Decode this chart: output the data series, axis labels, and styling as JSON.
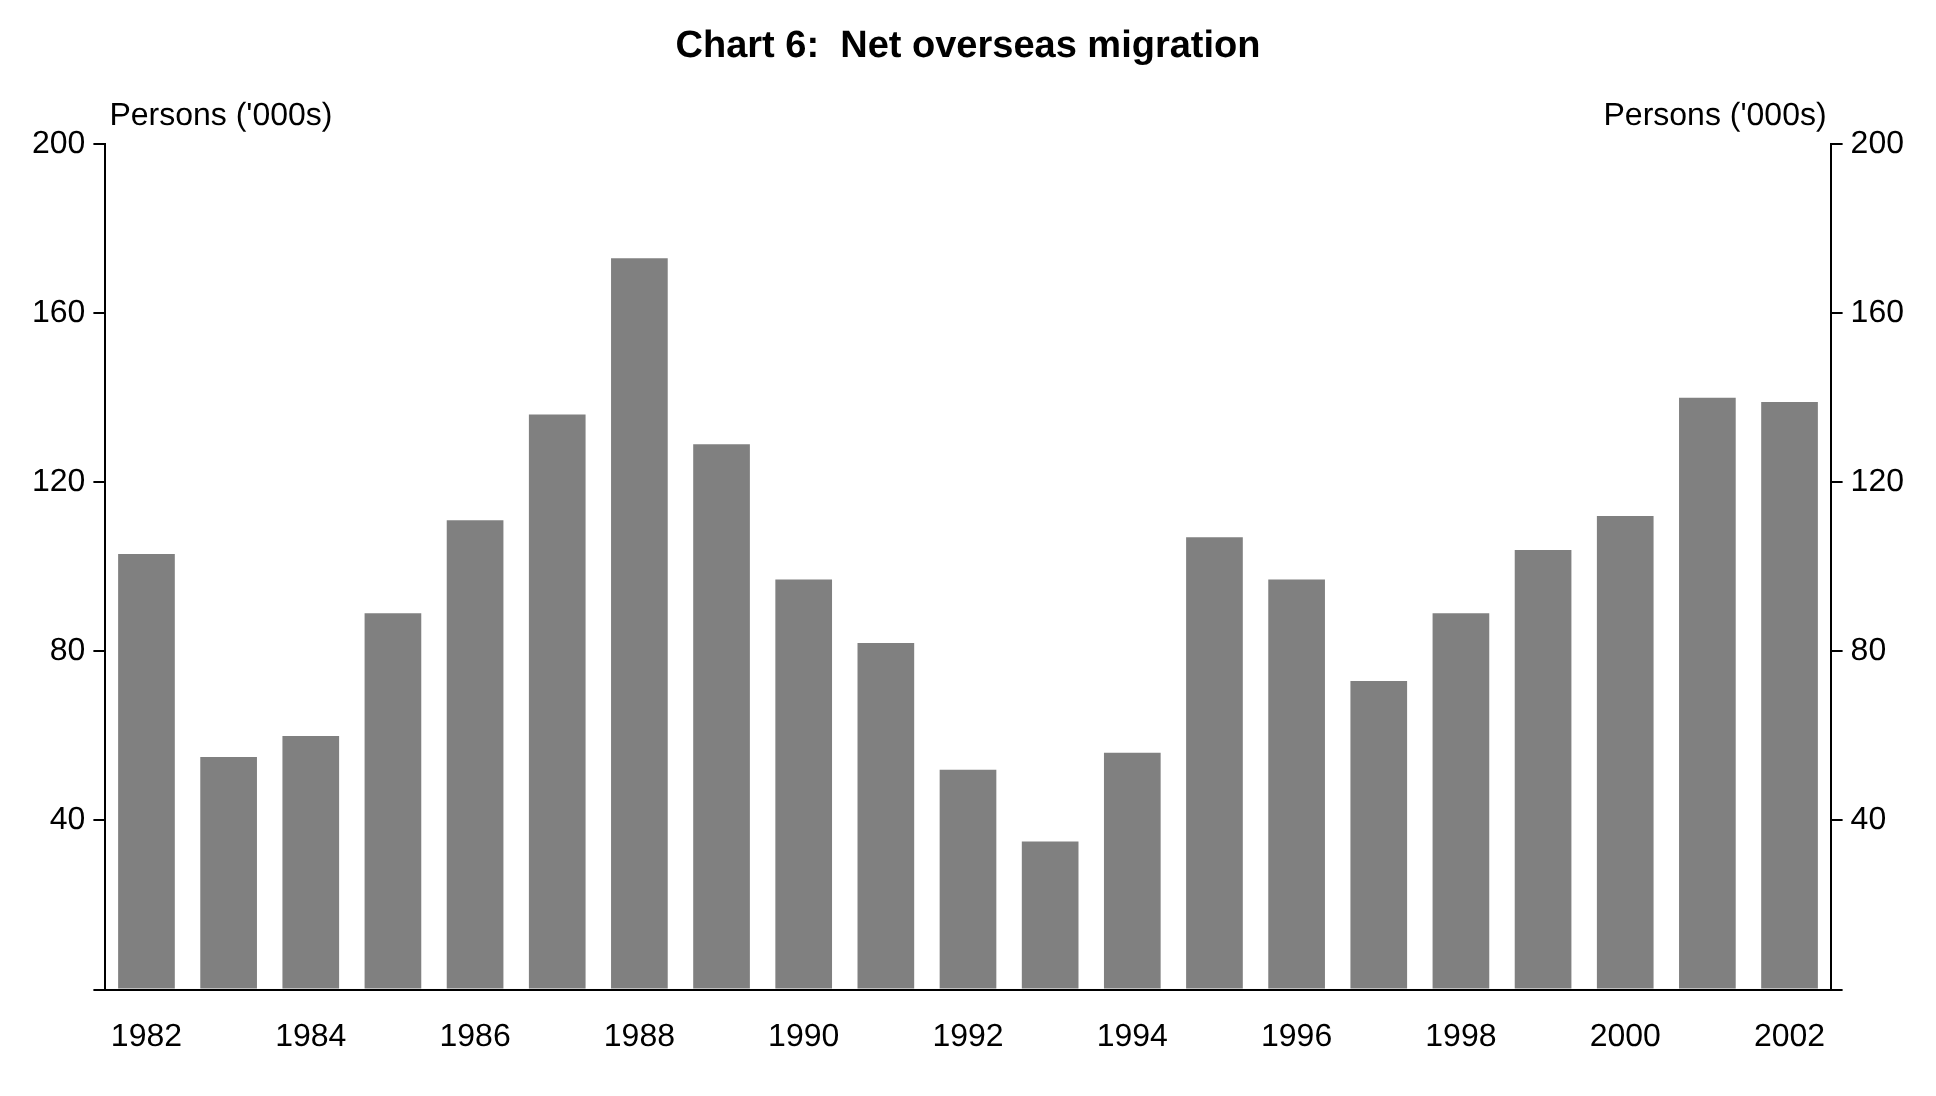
{
  "chart_data": {
    "type": "bar",
    "title": "Chart 6:  Net overseas migration",
    "ylabel": "Persons ('000s)",
    "y2label": "Persons ('000s)",
    "categories": [
      "1982",
      null,
      "1984",
      null,
      "1986",
      null,
      "1988",
      null,
      "1990",
      null,
      "1992",
      null,
      "1994",
      null,
      "1996",
      null,
      "1998",
      null,
      "2000",
      null,
      "2002"
    ],
    "series": [
      {
        "color": "#808080",
        "values": [
          103,
          55,
          60,
          89,
          111,
          136,
          173,
          129,
          97,
          82,
          52,
          35,
          56,
          107,
          97,
          73,
          89,
          104,
          112,
          140,
          139
        ]
      }
    ],
    "ylim": [
      0,
      200
    ],
    "yticks": [
      {
        "value": 0,
        "label": null
      },
      40,
      80,
      120,
      160,
      200
    ],
    "y2lim": [
      0,
      200
    ],
    "y2ticks": [
      {
        "value": 0,
        "label": null
      },
      40,
      80,
      120,
      160,
      200
    ],
    "grid": false,
    "legend": false
  }
}
